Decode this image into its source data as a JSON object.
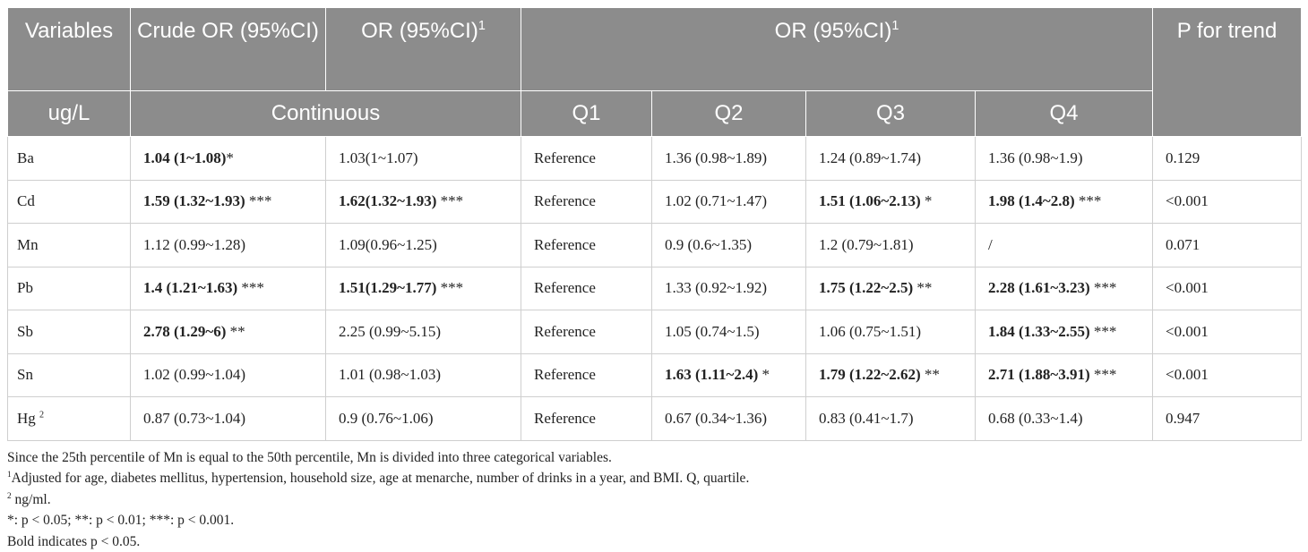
{
  "header": {
    "variables": "Variables",
    "crude_or": "Crude OR (95%CI)",
    "or_ci": "OR (95%CI)",
    "or_ci_sup": "1",
    "or_ci_quartiles": "OR (95%CI)",
    "or_ci_quartiles_sup": "1",
    "p_trend": "P for trend",
    "unit": "ug/L",
    "continuous": "Continuous",
    "q1": "Q1",
    "q2": "Q2",
    "q3": "Q3",
    "q4": "Q4"
  },
  "rows": [
    {
      "var": "Ba",
      "var_sup": "",
      "crude": {
        "val": "1.04 (1~1.08)",
        "bold": true,
        "stars": "*"
      },
      "adj": {
        "val": "1.03(1~1.07)",
        "bold": false,
        "stars": ""
      },
      "q1": "Reference",
      "q2": {
        "val": "1.36 (0.98~1.89)",
        "bold": false,
        "stars": ""
      },
      "q3": {
        "val": "1.24 (0.89~1.74)",
        "bold": false,
        "stars": ""
      },
      "q4": {
        "val": "1.36 (0.98~1.9)",
        "bold": false,
        "stars": ""
      },
      "p": "0.129"
    },
    {
      "var": "Cd",
      "var_sup": "",
      "crude": {
        "val": "1.59 (1.32~1.93)",
        "bold": true,
        "stars": " ***"
      },
      "adj": {
        "val": "1.62(1.32~1.93)",
        "bold": true,
        "stars": " ***"
      },
      "q1": "Reference",
      "q2": {
        "val": "1.02 (0.71~1.47)",
        "bold": false,
        "stars": ""
      },
      "q3": {
        "val": "1.51 (1.06~2.13)",
        "bold": true,
        "stars": " *"
      },
      "q4": {
        "val": "1.98 (1.4~2.8)",
        "bold": true,
        "stars": " ***"
      },
      "p": "<0.001"
    },
    {
      "var": "Mn",
      "var_sup": "",
      "crude": {
        "val": "1.12 (0.99~1.28)",
        "bold": false,
        "stars": ""
      },
      "adj": {
        "val": "1.09(0.96~1.25)",
        "bold": false,
        "stars": ""
      },
      "q1": "Reference",
      "q2": {
        "val": "0.9 (0.6~1.35)",
        "bold": false,
        "stars": ""
      },
      "q3": {
        "val": "1.2 (0.79~1.81)",
        "bold": false,
        "stars": ""
      },
      "q4": {
        "val": "/",
        "bold": false,
        "stars": ""
      },
      "p": "0.071"
    },
    {
      "var": "Pb",
      "var_sup": "",
      "crude": {
        "val": "1.4 (1.21~1.63)",
        "bold": true,
        "stars": " ***"
      },
      "adj": {
        "val": "1.51(1.29~1.77)",
        "bold": true,
        "stars": " ***"
      },
      "q1": "Reference",
      "q2": {
        "val": "1.33 (0.92~1.92)",
        "bold": false,
        "stars": ""
      },
      "q3": {
        "val": "1.75 (1.22~2.5)",
        "bold": true,
        "stars": " **"
      },
      "q4": {
        "val": "2.28 (1.61~3.23)",
        "bold": true,
        "stars": " ***"
      },
      "p": "<0.001"
    },
    {
      "var": "Sb",
      "var_sup": "",
      "crude": {
        "val": "2.78 (1.29~6)",
        "bold": true,
        "stars": " **"
      },
      "adj": {
        "val": "2.25 (0.99~5.15)",
        "bold": false,
        "stars": ""
      },
      "q1": "Reference",
      "q2": {
        "val": "1.05 (0.74~1.5)",
        "bold": false,
        "stars": ""
      },
      "q3": {
        "val": "1.06 (0.75~1.51)",
        "bold": false,
        "stars": ""
      },
      "q4": {
        "val": "1.84 (1.33~2.55)",
        "bold": true,
        "stars": " ***"
      },
      "p": "<0.001"
    },
    {
      "var": "Sn",
      "var_sup": "",
      "crude": {
        "val": "1.02 (0.99~1.04)",
        "bold": false,
        "stars": ""
      },
      "adj": {
        "val": "1.01 (0.98~1.03)",
        "bold": false,
        "stars": ""
      },
      "q1": "Reference",
      "q2": {
        "val": "1.63 (1.11~2.4)",
        "bold": true,
        "stars": " *"
      },
      "q3": {
        "val": "1.79 (1.22~2.62)",
        "bold": true,
        "stars": " **"
      },
      "q4": {
        "val": "2.71 (1.88~3.91)",
        "bold": true,
        "stars": " ***"
      },
      "p": "<0.001"
    },
    {
      "var": "Hg",
      "var_sup": "2",
      "crude": {
        "val": "0.87 (0.73~1.04)",
        "bold": false,
        "stars": ""
      },
      "adj": {
        "val": "0.9 (0.76~1.06)",
        "bold": false,
        "stars": ""
      },
      "q1": "Reference",
      "q2": {
        "val": "0.67 (0.34~1.36)",
        "bold": false,
        "stars": ""
      },
      "q3": {
        "val": "0.83 (0.41~1.7)",
        "bold": false,
        "stars": ""
      },
      "q4": {
        "val": "0.68 (0.33~1.4)",
        "bold": false,
        "stars": ""
      },
      "p": "0.947"
    }
  ],
  "notes": [
    {
      "sup": "",
      "text": "Since the 25th percentile of Mn is equal to the 50th percentile, Mn is divided into three categorical variables."
    },
    {
      "sup": "1",
      "text": "Adjusted for age, diabetes mellitus, hypertension, household size, age at menarche, number of drinks in a year, and BMI. Q, quartile."
    },
    {
      "sup": "2",
      "text": " ng/ml."
    },
    {
      "sup": "",
      "text": "*: p < 0.05; **: p < 0.01; ***: p < 0.001."
    },
    {
      "sup": "",
      "text": "Bold indicates p < 0.05."
    }
  ]
}
